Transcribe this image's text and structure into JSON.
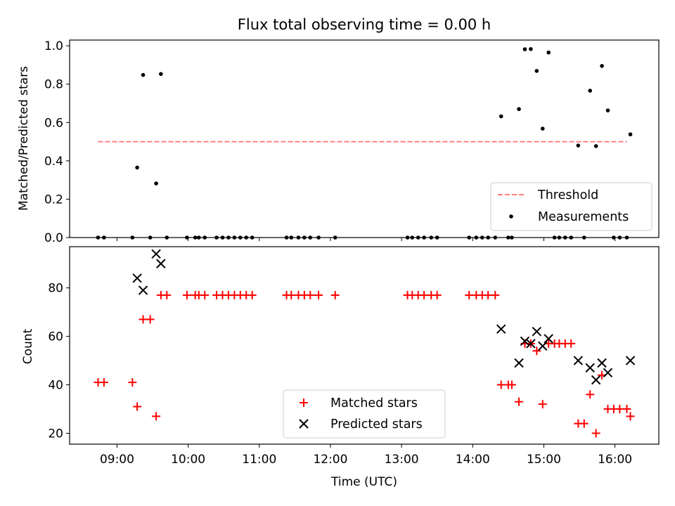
{
  "chart_data": [
    {
      "type": "scatter",
      "title": "Flux total observing time = 0.00 h",
      "xlabel": "",
      "ylabel": "Matched/Predicted stars",
      "xlim": [
        "08:20",
        "16:37"
      ],
      "ylim": [
        0.0,
        1.03
      ],
      "yticks": [
        "0.0",
        "0.2",
        "0.4",
        "0.6",
        "0.8",
        "1.0"
      ],
      "grid": false,
      "legend": {
        "placement": "lower-right",
        "entries": [
          "Threshold",
          "Measurements"
        ]
      },
      "threshold": {
        "name": "Threshold",
        "value": 0.5,
        "x": [
          "08:44",
          "16:10"
        ],
        "color": "#ff7f7f",
        "style": "dashed"
      },
      "series": [
        {
          "name": "Measurements",
          "color": "#000000",
          "marker": "dot",
          "points": [
            [
              "08:44",
              0.0
            ],
            [
              "08:49",
              0.0
            ],
            [
              "09:13",
              0.0
            ],
            [
              "09:17",
              0.365
            ],
            [
              "09:22",
              0.848
            ],
            [
              "09:28",
              0.0
            ],
            [
              "09:33",
              0.282
            ],
            [
              "09:37",
              0.853
            ],
            [
              "09:42",
              0.0
            ],
            [
              "09:59",
              0.0
            ],
            [
              "10:06",
              0.0
            ],
            [
              "10:09",
              0.0
            ],
            [
              "10:14",
              0.0
            ],
            [
              "10:24",
              0.0
            ],
            [
              "10:29",
              0.0
            ],
            [
              "10:34",
              0.0
            ],
            [
              "10:39",
              0.0
            ],
            [
              "10:44",
              0.0
            ],
            [
              "10:49",
              0.0
            ],
            [
              "10:54",
              0.0
            ],
            [
              "11:23",
              0.0
            ],
            [
              "11:27",
              0.0
            ],
            [
              "11:33",
              0.0
            ],
            [
              "11:38",
              0.0
            ],
            [
              "11:43",
              0.0
            ],
            [
              "11:50",
              0.0
            ],
            [
              "12:04",
              0.0
            ],
            [
              "13:05",
              0.0
            ],
            [
              "13:09",
              0.0
            ],
            [
              "13:14",
              0.0
            ],
            [
              "13:19",
              0.0
            ],
            [
              "13:25",
              0.0
            ],
            [
              "13:30",
              0.0
            ],
            [
              "13:57",
              0.0
            ],
            [
              "14:03",
              0.0
            ],
            [
              "14:08",
              0.0
            ],
            [
              "14:13",
              0.0
            ],
            [
              "14:19",
              0.0
            ],
            [
              "14:24",
              0.632
            ],
            [
              "14:30",
              0.0
            ],
            [
              "14:33",
              0.0
            ],
            [
              "14:39",
              0.67
            ],
            [
              "14:44",
              0.982
            ],
            [
              "14:49",
              0.983
            ],
            [
              "14:54",
              0.869
            ],
            [
              "14:59",
              0.568
            ],
            [
              "15:04",
              0.965
            ],
            [
              "15:09",
              0.0
            ],
            [
              "15:13",
              0.0
            ],
            [
              "15:18",
              0.0
            ],
            [
              "15:23",
              0.0
            ],
            [
              "15:29",
              0.48
            ],
            [
              "15:34",
              0.0
            ],
            [
              "15:39",
              0.766
            ],
            [
              "15:44",
              0.477
            ],
            [
              "15:49",
              0.895
            ],
            [
              "15:54",
              0.663
            ],
            [
              "15:59",
              0.0
            ],
            [
              "16:04",
              0.0
            ],
            [
              "16:10",
              0.0
            ],
            [
              "16:13",
              0.538
            ]
          ]
        }
      ]
    },
    {
      "type": "scatter",
      "title": "",
      "xlabel": "Time (UTC)",
      "ylabel": "Count",
      "xlim": [
        "08:20",
        "16:37"
      ],
      "ylim": [
        15.5,
        97
      ],
      "yticks": [
        "20",
        "40",
        "60",
        "80"
      ],
      "xticks": [
        "09:00",
        "10:00",
        "11:00",
        "12:00",
        "13:00",
        "14:00",
        "15:00",
        "16:00"
      ],
      "grid": false,
      "legend": {
        "placement": "lower-center",
        "entries": [
          "Matched stars",
          "Predicted stars"
        ]
      },
      "series": [
        {
          "name": "Matched stars",
          "color": "#ff0000",
          "marker": "plus",
          "points": [
            [
              "08:44",
              41
            ],
            [
              "08:49",
              41
            ],
            [
              "09:13",
              41
            ],
            [
              "09:17",
              31
            ],
            [
              "09:22",
              67
            ],
            [
              "09:28",
              67
            ],
            [
              "09:33",
              27
            ],
            [
              "09:37",
              77
            ],
            [
              "09:42",
              77
            ],
            [
              "09:59",
              77
            ],
            [
              "10:06",
              77
            ],
            [
              "10:09",
              77
            ],
            [
              "10:14",
              77
            ],
            [
              "10:24",
              77
            ],
            [
              "10:29",
              77
            ],
            [
              "10:34",
              77
            ],
            [
              "10:39",
              77
            ],
            [
              "10:44",
              77
            ],
            [
              "10:49",
              77
            ],
            [
              "10:54",
              77
            ],
            [
              "11:23",
              77
            ],
            [
              "11:27",
              77
            ],
            [
              "11:33",
              77
            ],
            [
              "11:38",
              77
            ],
            [
              "11:43",
              77
            ],
            [
              "11:50",
              77
            ],
            [
              "12:04",
              77
            ],
            [
              "13:05",
              77
            ],
            [
              "13:09",
              77
            ],
            [
              "13:14",
              77
            ],
            [
              "13:19",
              77
            ],
            [
              "13:25",
              77
            ],
            [
              "13:30",
              77
            ],
            [
              "13:57",
              77
            ],
            [
              "14:03",
              77
            ],
            [
              "14:08",
              77
            ],
            [
              "14:13",
              77
            ],
            [
              "14:19",
              77
            ],
            [
              "14:24",
              40
            ],
            [
              "14:30",
              40
            ],
            [
              "14:33",
              40
            ],
            [
              "14:39",
              33
            ],
            [
              "14:44",
              57
            ],
            [
              "14:49",
              57
            ],
            [
              "14:54",
              54
            ],
            [
              "14:59",
              32
            ],
            [
              "15:04",
              57
            ],
            [
              "15:09",
              57
            ],
            [
              "15:13",
              57
            ],
            [
              "15:18",
              57
            ],
            [
              "15:23",
              57
            ],
            [
              "15:29",
              24
            ],
            [
              "15:34",
              24
            ],
            [
              "15:39",
              36
            ],
            [
              "15:44",
              20
            ],
            [
              "15:49",
              44
            ],
            [
              "15:54",
              30
            ],
            [
              "15:59",
              30
            ],
            [
              "16:04",
              30
            ],
            [
              "16:10",
              30
            ],
            [
              "16:13",
              27
            ]
          ]
        },
        {
          "name": "Predicted stars",
          "color": "#000000",
          "marker": "x",
          "points": [
            [
              "09:17",
              84
            ],
            [
              "09:22",
              79
            ],
            [
              "09:33",
              94
            ],
            [
              "09:37",
              90
            ],
            [
              "14:24",
              63
            ],
            [
              "14:39",
              49
            ],
            [
              "14:44",
              58
            ],
            [
              "14:49",
              57
            ],
            [
              "14:54",
              62
            ],
            [
              "14:59",
              56
            ],
            [
              "15:04",
              59
            ],
            [
              "15:29",
              50
            ],
            [
              "15:39",
              47
            ],
            [
              "15:44",
              42
            ],
            [
              "15:49",
              49
            ],
            [
              "15:54",
              45
            ],
            [
              "16:13",
              50
            ]
          ]
        }
      ]
    }
  ]
}
